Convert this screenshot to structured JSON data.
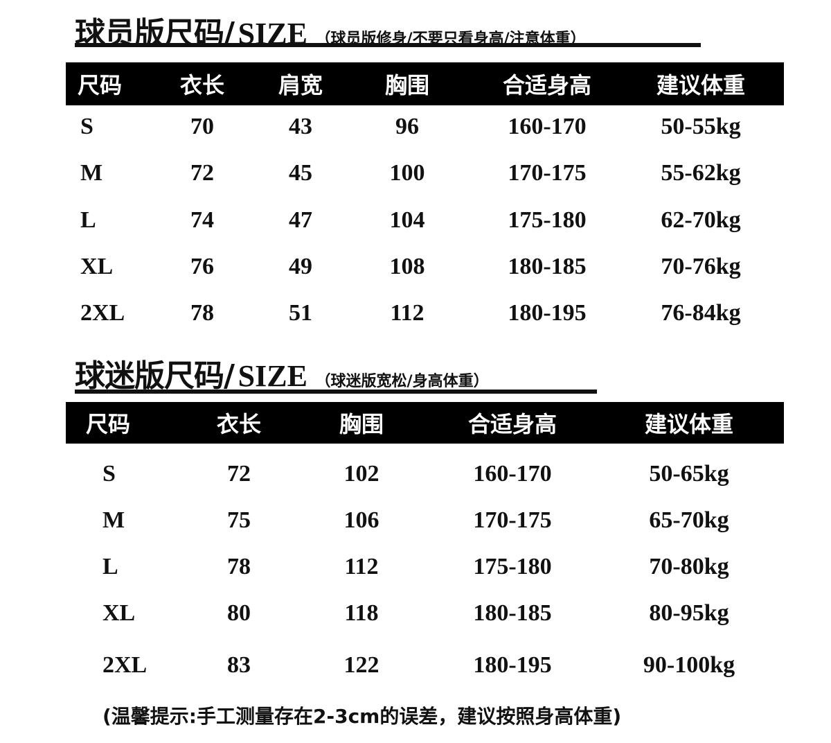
{
  "player": {
    "title": "球员版尺码/",
    "size_label": "SIZE",
    "note": "（球员版修身/不要只看身高/注意体重）",
    "headers": [
      "尺码",
      "衣长",
      "肩宽",
      "胸围",
      "合适身高",
      "建议体重"
    ],
    "rows": [
      [
        "S",
        "70",
        "43",
        "96",
        "160-170",
        "50-55kg"
      ],
      [
        "M",
        "72",
        "45",
        "100",
        "170-175",
        "55-62kg"
      ],
      [
        "L",
        "74",
        "47",
        "104",
        "175-180",
        "62-70kg"
      ],
      [
        "XL",
        "76",
        "49",
        "108",
        "180-185",
        "70-76kg"
      ],
      [
        "2XL",
        "78",
        "51",
        "112",
        "180-195",
        "76-84kg"
      ]
    ]
  },
  "fan": {
    "title": "球迷版尺码/",
    "size_label": "SIZE",
    "note": "（球迷版宽松/身高体重）",
    "headers": [
      "尺码",
      "衣长",
      "胸围",
      "合适身高",
      "建议体重"
    ],
    "rows": [
      [
        "S",
        "72",
        "102",
        "160-170",
        "50-65kg"
      ],
      [
        "M",
        "75",
        "106",
        "170-175",
        "65-70kg"
      ],
      [
        "L",
        "78",
        "112",
        "175-180",
        "70-80kg"
      ],
      [
        "XL",
        "80",
        "118",
        "180-185",
        "80-95kg"
      ],
      [
        "2XL",
        "83",
        "122",
        "180-195",
        "90-100kg"
      ]
    ]
  },
  "footer": "(温馨提示:手工测量存在2-3cm的误差，建议按照身高体重)"
}
